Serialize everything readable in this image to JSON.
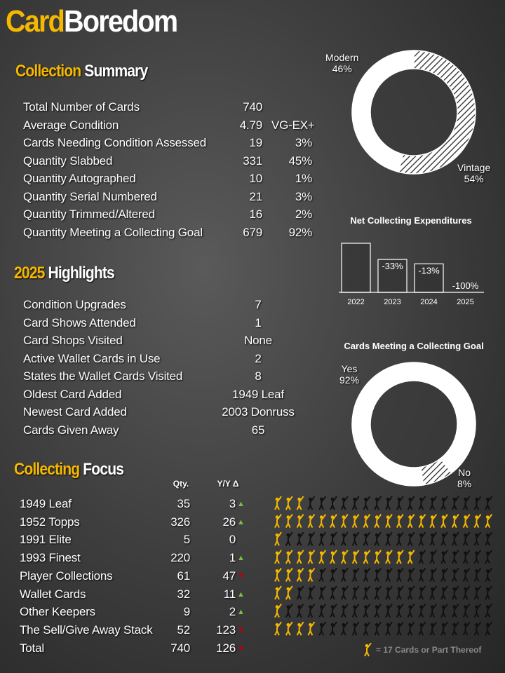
{
  "logo": {
    "part1": "Card",
    "part2": "Boredom"
  },
  "summary": {
    "title1": "Collection",
    "title2": "Summary",
    "rows": [
      {
        "label": "Total Number of Cards",
        "value": "740",
        "extra": ""
      },
      {
        "label": "Average Condition",
        "value": "4.79",
        "extra": "VG-EX+"
      },
      {
        "label": "Cards Needing Condition Assessed",
        "value": "19",
        "extra": "3%"
      },
      {
        "label": "Quantity Slabbed",
        "value": "331",
        "extra": "45%"
      },
      {
        "label": "Quantity Autographed",
        "value": "10",
        "extra": "1%"
      },
      {
        "label": "Quantity Serial Numbered",
        "value": "21",
        "extra": "3%"
      },
      {
        "label": "Quantity Trimmed/Altered",
        "value": "16",
        "extra": "2%"
      },
      {
        "label": "Quantity Meeting a Collecting Goal",
        "value": "679",
        "extra": "92%"
      }
    ]
  },
  "highlights": {
    "title1": "2025",
    "title2": "Highlights",
    "rows": [
      {
        "label": "Condition Upgrades",
        "value": "7"
      },
      {
        "label": "Card Shows Attended",
        "value": "1"
      },
      {
        "label": "Card Shops Visited",
        "value": "None"
      },
      {
        "label": "Active Wallet Cards in Use",
        "value": "2"
      },
      {
        "label": "States the Wallet Cards Visited",
        "value": "8"
      },
      {
        "label": "Oldest Card Added",
        "value": "1949 Leaf"
      },
      {
        "label": "Newest Card Added",
        "value": "2003 Donruss"
      },
      {
        "label": "Cards Given Away",
        "value": "65"
      }
    ]
  },
  "focus": {
    "title1": "Collecting",
    "title2": "Focus",
    "qty_header": "Qty.",
    "yoy_header": "Y/Y Δ",
    "rows": [
      {
        "label": "1949 Leaf",
        "qty": "35",
        "yoy": "3",
        "trend": "up",
        "icons": 3
      },
      {
        "label": "1952 Topps",
        "qty": "326",
        "yoy": "26",
        "trend": "up",
        "icons": 20
      },
      {
        "label": "1991 Elite",
        "qty": "5",
        "yoy": "0",
        "trend": "none",
        "icons": 1
      },
      {
        "label": "1993 Finest",
        "qty": "220",
        "yoy": "1",
        "trend": "up",
        "icons": 13
      },
      {
        "label": "Player Collections",
        "qty": "61",
        "yoy": "47",
        "trend": "down",
        "icons": 4
      },
      {
        "label": "Wallet Cards",
        "qty": "32",
        "yoy": "11",
        "trend": "up",
        "icons": 2
      },
      {
        "label": "Other Keepers",
        "qty": "9",
        "yoy": "2",
        "trend": "up",
        "icons": 1
      },
      {
        "label": "The Sell/Give Away Stack",
        "qty": "52",
        "yoy": "123",
        "trend": "down",
        "icons": 4
      },
      {
        "label": "Total",
        "qty": "740",
        "yoy": "126",
        "trend": "down",
        "icons": 0
      }
    ],
    "legend": "= 17 Cards or Part Thereof"
  },
  "colors": {
    "accent": "#f5b800",
    "up": "#7ac143",
    "down": "#c00000",
    "icon_off": "#111111"
  },
  "chart_data": [
    {
      "type": "pie",
      "style": "donut",
      "slices": [
        {
          "name": "Modern",
          "value": 46,
          "label": "46%",
          "fill": "white"
        },
        {
          "name": "Vintage",
          "value": 54,
          "label": "54%",
          "fill": "hatched"
        }
      ]
    },
    {
      "type": "bar",
      "title": "Net Collecting Expenditures",
      "categories": [
        "2022",
        "2023",
        "2024",
        "2025"
      ],
      "values": [
        100,
        67,
        58,
        0
      ],
      "data_labels": [
        "",
        "-33%",
        "-13%",
        "-100%"
      ],
      "grid": false
    },
    {
      "type": "pie",
      "style": "donut",
      "title": "Cards Meeting a Collecting Goal",
      "slices": [
        {
          "name": "Yes",
          "value": 92,
          "label": "92%",
          "fill": "white"
        },
        {
          "name": "No",
          "value": 8,
          "label": "8%",
          "fill": "hatched"
        }
      ]
    }
  ]
}
